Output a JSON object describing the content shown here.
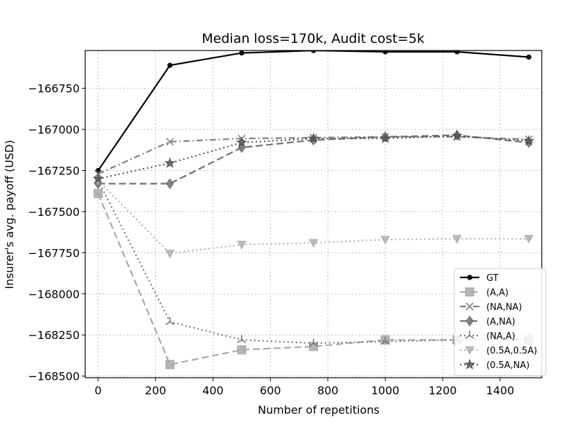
{
  "chart_data": {
    "type": "line",
    "title": "Median loss=170k, Audit cost=5k",
    "xlabel": "Number of repetitions",
    "ylabel": "Insurer's avg. payoff (USD)",
    "xlim": [
      -45,
      1545
    ],
    "ylim": [
      -168510,
      -166520
    ],
    "x_ticks": [
      0,
      200,
      400,
      600,
      800,
      1000,
      1200,
      1400
    ],
    "x_tick_labels": [
      "0",
      "200",
      "400",
      "600",
      "800",
      "1000",
      "1200",
      "1400"
    ],
    "y_ticks": [
      -166750,
      -167000,
      -167250,
      -167500,
      -167750,
      -168000,
      -168250,
      -168500
    ],
    "y_tick_labels": [
      "−166750",
      "−167000",
      "−167250",
      "−167500",
      "−167750",
      "−168000",
      "−168250",
      "−168500"
    ],
    "grid": true,
    "legend_position": "lower-right",
    "x": [
      0,
      250,
      500,
      750,
      1000,
      1250,
      1500
    ],
    "series": [
      {
        "name": "GT",
        "color": "#000000",
        "dash": "solid",
        "marker": "circle",
        "values": [
          -167250,
          -166610,
          -166535,
          -166520,
          -166528,
          -166528,
          -166560
        ]
      },
      {
        "name": "(A,A)",
        "color": "#a8a8a8",
        "dash": "dashed",
        "marker": "square",
        "values": [
          -167390,
          -168430,
          -168340,
          -168320,
          -168280,
          -168280,
          -168280
        ]
      },
      {
        "name": "(NA,NA)",
        "color": "#808080",
        "dash": "dashdot",
        "marker": "x",
        "values": [
          -167270,
          -167075,
          -167055,
          -167050,
          -167045,
          -167045,
          -167060
        ]
      },
      {
        "name": "(A,NA)",
        "color": "#6f6f6f",
        "dash": "dashed",
        "marker": "diamond",
        "values": [
          -167330,
          -167330,
          -167110,
          -167065,
          -167045,
          -167035,
          -167080
        ]
      },
      {
        "name": "(NA,A)",
        "color": "#777777",
        "dash": "dotted",
        "marker": "tri_up",
        "values": [
          -167310,
          -168170,
          -168280,
          -168300,
          -168290,
          -168280,
          -168270
        ]
      },
      {
        "name": "(0.5A,0.5A)",
        "color": "#b0b0b0",
        "dash": "dotted",
        "marker": "triangle_down",
        "values": [
          -167310,
          -167755,
          -167700,
          -167690,
          -167670,
          -167665,
          -167665
        ]
      },
      {
        "name": "(0.5A,NA)",
        "color": "#555555",
        "dash": "dotted",
        "marker": "star",
        "values": [
          -167300,
          -167205,
          -167080,
          -167055,
          -167055,
          -167040,
          -167070
        ]
      }
    ]
  }
}
